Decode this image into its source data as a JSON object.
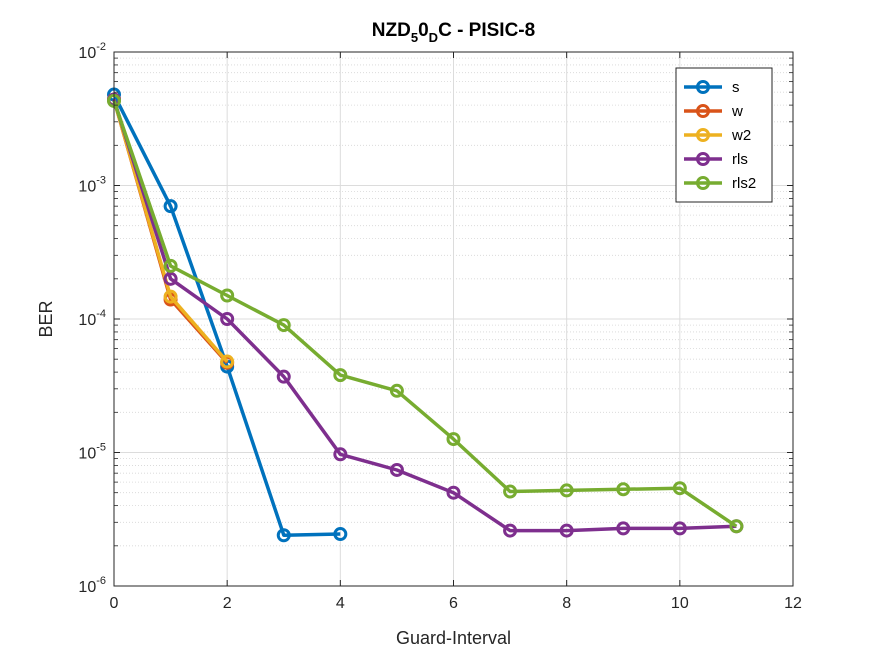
{
  "chart_data": {
    "type": "line",
    "title": {
      "base": "NZD",
      "sub1": "5",
      "mid": "0",
      "sub2": "D",
      "tail": "C - PISIC-8"
    },
    "xlabel": "Guard-Interval",
    "ylabel": "BER",
    "xlim": [
      0,
      12
    ],
    "xticks": [
      0,
      2,
      4,
      6,
      8,
      10,
      12
    ],
    "yscale": "log",
    "ylim": [
      1e-06,
      0.01
    ],
    "yticks": [
      {
        "value": 1e-06,
        "base": "10",
        "exp": "-6"
      },
      {
        "value": 1e-05,
        "base": "10",
        "exp": "-5"
      },
      {
        "value": 0.0001,
        "base": "10",
        "exp": "-4"
      },
      {
        "value": 0.001,
        "base": "10",
        "exp": "-3"
      },
      {
        "value": 0.01,
        "base": "10",
        "exp": "-2"
      }
    ],
    "grid": true,
    "legend_position": "top-right",
    "series": [
      {
        "name": "s",
        "color": "#0072BD",
        "x": [
          0,
          1,
          2,
          3,
          4
        ],
        "y": [
          0.0048,
          0.0007,
          4.4e-05,
          2.4e-06,
          2.45e-06
        ]
      },
      {
        "name": "w",
        "color": "#D95319",
        "x": [
          0,
          1,
          2
        ],
        "y": [
          0.0044,
          0.00014,
          4.7e-05
        ]
      },
      {
        "name": "w2",
        "color": "#EDB120",
        "x": [
          0,
          1,
          2
        ],
        "y": [
          0.0044,
          0.000147,
          4.8e-05
        ]
      },
      {
        "name": "rls",
        "color": "#7E2F8E",
        "x": [
          0,
          1,
          2,
          3,
          4,
          5,
          6,
          7,
          8,
          9,
          10,
          11
        ],
        "y": [
          0.0044,
          0.0002,
          0.0001,
          3.7e-05,
          9.7e-06,
          7.4e-06,
          5e-06,
          2.6e-06,
          2.6e-06,
          2.7e-06,
          2.7e-06,
          2.8e-06
        ]
      },
      {
        "name": "rls2",
        "color": "#77AC30",
        "x": [
          0,
          1,
          2,
          3,
          4,
          5,
          6,
          7,
          8,
          9,
          10,
          11
        ],
        "y": [
          0.0043,
          0.00025,
          0.00015,
          9e-05,
          3.8e-05,
          2.9e-05,
          1.26e-05,
          5.1e-06,
          5.2e-06,
          5.3e-06,
          5.4e-06,
          2.8e-06
        ]
      }
    ]
  }
}
